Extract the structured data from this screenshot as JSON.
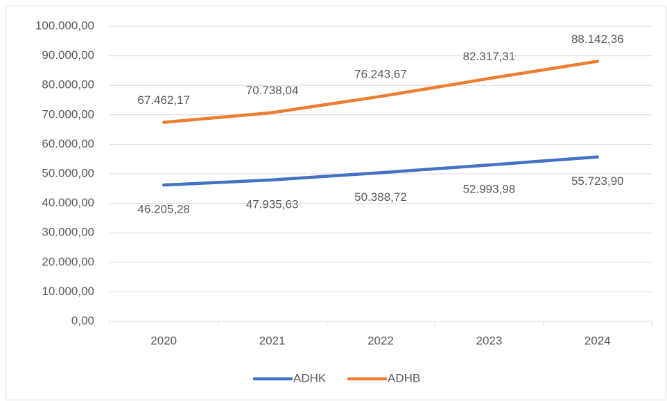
{
  "chart_data": {
    "type": "line",
    "categories": [
      "2020",
      "2021",
      "2022",
      "2023",
      "2024"
    ],
    "series": [
      {
        "name": "ADHK",
        "color": "#4472c4",
        "values": [
          46205.28,
          47935.63,
          50388.72,
          52993.98,
          55723.9
        ],
        "value_labels": [
          "46.205,28",
          "47.935,63",
          "50.388,72",
          "52.993,98",
          "55.723,90"
        ]
      },
      {
        "name": "ADHB",
        "color": "#ed7d31",
        "values": [
          67462.17,
          70738.04,
          76243.67,
          82317.31,
          88142.36
        ],
        "value_labels": [
          "67.462,17",
          "70.738,04",
          "76.243,67",
          "82.317,31",
          "88.142,36"
        ]
      }
    ],
    "ylim": [
      0,
      100000
    ],
    "yticks": [
      {
        "value": 0,
        "label": "0,00"
      },
      {
        "value": 10000,
        "label": "10.000,00"
      },
      {
        "value": 20000,
        "label": "20.000,00"
      },
      {
        "value": 30000,
        "label": "30.000,00"
      },
      {
        "value": 40000,
        "label": "40.000,00"
      },
      {
        "value": 50000,
        "label": "50.000,00"
      },
      {
        "value": 60000,
        "label": "60.000,00"
      },
      {
        "value": 70000,
        "label": "70.000,00"
      },
      {
        "value": 80000,
        "label": "80.000,00"
      },
      {
        "value": 90000,
        "label": "90.000,00"
      },
      {
        "value": 100000,
        "label": "100.000,00"
      }
    ],
    "grid": true,
    "legend": "bottom"
  }
}
